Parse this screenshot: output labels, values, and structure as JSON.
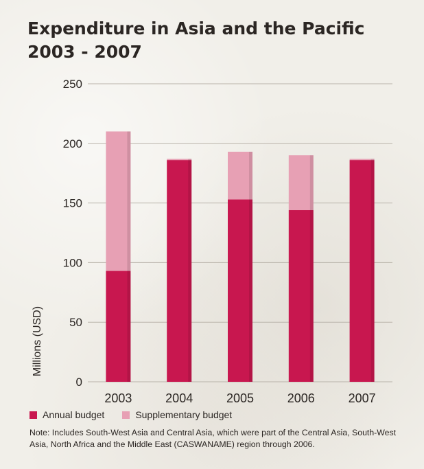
{
  "chart_data": {
    "type": "bar",
    "stacked": true,
    "title": "Expenditure in Asia and the Pacific",
    "subtitle": "2003 - 2007",
    "ylabel": "Millions (USD)",
    "xlabel": "",
    "ylim": [
      0,
      250
    ],
    "yticks": [
      0,
      50,
      100,
      150,
      200,
      250
    ],
    "grid": true,
    "legend_position": "bottom-left",
    "categories": [
      "2003",
      "2004",
      "2005",
      "2006",
      "2007"
    ],
    "series": [
      {
        "name": "Annual budget",
        "color": "#c8174f",
        "values": [
          93,
          186,
          153,
          144,
          186
        ]
      },
      {
        "name": "Supplementary budget",
        "color": "#e7a0b4",
        "values": [
          117,
          1,
          40,
          46,
          1
        ]
      }
    ],
    "note": "Note: Includes South-West Asia and Central Asia, which were part of the Central Asia, South-West Asia, North Africa and the Middle East (CASWANAME) region through 2006."
  }
}
